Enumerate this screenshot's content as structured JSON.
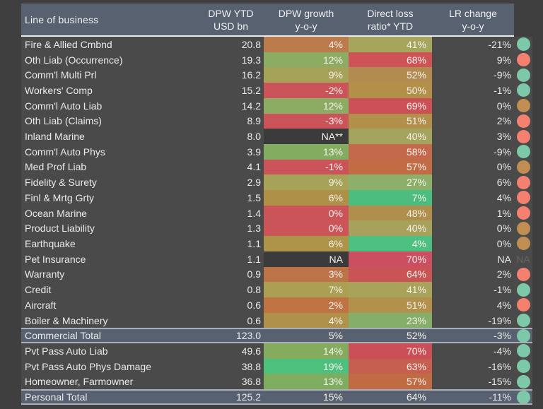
{
  "header": {
    "line_of_business": "Line of business",
    "col_dpw": {
      "line1": "DPW YTD",
      "line2": "USD bn"
    },
    "col_growth": {
      "line1": "DPW growth",
      "line2": "y-o-y"
    },
    "col_loss": {
      "line1": "Direct loss",
      "line2": "ratio* YTD"
    },
    "col_lr": {
      "line1": "LR change",
      "line2": "y-o-y"
    }
  },
  "colors": {
    "page_bg": "#3f3f3f",
    "row_bg": "#4a4a4a",
    "header_bg": "#57616f",
    "total_row_bg": "#57616f",
    "header_divider": "#e9ebed",
    "total_border": "#a9b0ba",
    "text": "#e9eaeb",
    "na_cell_bg": "#3b3b3b",
    "na_faded_text": "#656565",
    "indicator_teal": "#7dc8a9",
    "indicator_salmon": "#f4806f",
    "indicator_tan": "#c08d52"
  },
  "chart_data": {
    "type": "table",
    "subtype": "heatmap-table",
    "columns": [
      "Line of business",
      "DPW YTD USD bn",
      "DPW growth y-o-y",
      "Direct loss ratio* YTD",
      "LR change y-o-y"
    ],
    "na_indicator_text": "NA",
    "rows": [
      {
        "label": "Fire & Allied Cmbnd",
        "dpw_ytd": "20.8",
        "dpw_growth": "4%",
        "growth_bg": "#bb7b4a",
        "loss_ratio": "41%",
        "loss_bg": "#a6a55e",
        "lr_change": "-21%",
        "indicator": "teal",
        "is_total": false
      },
      {
        "label": "Oth Liab (Occurrence)",
        "dpw_ytd": "19.3",
        "dpw_growth": "12%",
        "growth_bg": "#8dac63",
        "loss_ratio": "68%",
        "loss_bg": "#cd5356",
        "lr_change": "9%",
        "indicator": "salmon",
        "is_total": false
      },
      {
        "label": "Comm'l Multi Prl",
        "dpw_ytd": "16.2",
        "dpw_growth": "9%",
        "growth_bg": "#a6a257",
        "loss_ratio": "52%",
        "loss_bg": "#b28b50",
        "lr_change": "-9%",
        "indicator": "teal",
        "is_total": false
      },
      {
        "label": "Workers' Comp",
        "dpw_ytd": "15.2",
        "dpw_growth": "-2%",
        "growth_bg": "#cb535a",
        "loss_ratio": "50%",
        "loss_bg": "#b2904a",
        "lr_change": "-1%",
        "indicator": "teal",
        "is_total": false
      },
      {
        "label": "Comm'l Auto Liab",
        "dpw_ytd": "14.2",
        "dpw_growth": "12%",
        "growth_bg": "#8dac63",
        "loss_ratio": "69%",
        "loss_bg": "#cc5156",
        "lr_change": "0%",
        "indicator": "tan",
        "is_total": false
      },
      {
        "label": "Oth Liab (Claims)",
        "dpw_ytd": "8.9",
        "dpw_growth": "-3%",
        "growth_bg": "#cb535a",
        "loss_ratio": "51%",
        "loss_bg": "#b28f4b",
        "lr_change": "2%",
        "indicator": "salmon",
        "is_total": false
      },
      {
        "label": "Inland Marine",
        "dpw_ytd": "8.0",
        "dpw_growth": "NA**",
        "growth_bg": "#3b3b3b",
        "loss_ratio": "40%",
        "loss_bg": "#a5a45e",
        "lr_change": "3%",
        "indicator": "salmon",
        "is_total": false
      },
      {
        "label": "Comm'l Auto Phys",
        "dpw_ytd": "3.9",
        "dpw_growth": "13%",
        "growth_bg": "#84ac60",
        "loss_ratio": "58%",
        "loss_bg": "#c4694b",
        "lr_change": "-9%",
        "indicator": "teal",
        "is_total": false
      },
      {
        "label": "Med Prof Liab",
        "dpw_ytd": "4.1",
        "dpw_growth": "-1%",
        "growth_bg": "#cb535a",
        "loss_ratio": "57%",
        "loss_bg": "#c16c45",
        "lr_change": "0%",
        "indicator": "tan",
        "is_total": false
      },
      {
        "label": "Fidelity & Surety",
        "dpw_ytd": "2.9",
        "dpw_growth": "9%",
        "growth_bg": "#a6a257",
        "loss_ratio": "27%",
        "loss_bg": "#8daf69",
        "lr_change": "6%",
        "indicator": "salmon",
        "is_total": false
      },
      {
        "label": "Finl & Mrtg Grty",
        "dpw_ytd": "1.5",
        "dpw_growth": "6%",
        "growth_bg": "#ae9049",
        "loss_ratio": "7%",
        "loss_bg": "#4cbd7e",
        "lr_change": "4%",
        "indicator": "salmon",
        "is_total": false
      },
      {
        "label": "Ocean Marine",
        "dpw_ytd": "1.4",
        "dpw_growth": "0%",
        "growth_bg": "#ca5457",
        "loss_ratio": "48%",
        "loss_bg": "#b08e4c",
        "lr_change": "1%",
        "indicator": "salmon",
        "is_total": false
      },
      {
        "label": "Product Liability",
        "dpw_ytd": "1.3",
        "dpw_growth": "0%",
        "growth_bg": "#ca5457",
        "loss_ratio": "40%",
        "loss_bg": "#a7a15c",
        "lr_change": "0%",
        "indicator": "tan",
        "is_total": false
      },
      {
        "label": "Earthquake",
        "dpw_ytd": "1.1",
        "dpw_growth": "6%",
        "growth_bg": "#ad9449",
        "loss_ratio": "4%",
        "loss_bg": "#4dbf80",
        "lr_change": "0%",
        "indicator": "tan",
        "is_total": false
      },
      {
        "label": "Pet Insurance",
        "dpw_ytd": "1.1",
        "dpw_growth": "NA",
        "growth_bg": "#3b3b3b",
        "loss_ratio": "70%",
        "loss_bg": "#cb4f60",
        "lr_change": "NA",
        "indicator": "na",
        "is_total": false
      },
      {
        "label": "Warranty",
        "dpw_ytd": "0.9",
        "dpw_growth": "3%",
        "growth_bg": "#bd7348",
        "loss_ratio": "64%",
        "loss_bg": "#ca5356",
        "lr_change": "2%",
        "indicator": "salmon",
        "is_total": false
      },
      {
        "label": "Credit",
        "dpw_ytd": "0.8",
        "dpw_growth": "7%",
        "growth_bg": "#aa9f53",
        "loss_ratio": "41%",
        "loss_bg": "#a8a25b",
        "lr_change": "-1%",
        "indicator": "teal",
        "is_total": false
      },
      {
        "label": "Aircraft",
        "dpw_ytd": "0.6",
        "dpw_growth": "2%",
        "growth_bg": "#c07446",
        "loss_ratio": "51%",
        "loss_bg": "#b2914c",
        "lr_change": "4%",
        "indicator": "salmon",
        "is_total": false
      },
      {
        "label": "Boiler & Machinery",
        "dpw_ytd": "0.6",
        "dpw_growth": "4%",
        "growth_bg": "#b0914b",
        "loss_ratio": "23%",
        "loss_bg": "#85ae68",
        "lr_change": "-19%",
        "indicator": "teal",
        "is_total": false
      },
      {
        "label": "Commercial Total",
        "dpw_ytd": "123.0",
        "dpw_growth": "5%",
        "growth_bg": null,
        "loss_ratio": "52%",
        "loss_bg": null,
        "lr_change": "-3%",
        "indicator": "teal",
        "is_total": true
      },
      {
        "label": "Pvt Pass Auto Liab",
        "dpw_ytd": "49.6",
        "dpw_growth": "14%",
        "growth_bg": "#84ab5e",
        "loss_ratio": "70%",
        "loss_bg": "#ca4f59",
        "lr_change": "-4%",
        "indicator": "teal",
        "is_total": false
      },
      {
        "label": "Pvt Pass Auto Phys Damage",
        "dpw_ytd": "38.8",
        "dpw_growth": "19%",
        "growth_bg": "#4ec07d",
        "loss_ratio": "63%",
        "loss_bg": "#c75f50",
        "lr_change": "-16%",
        "indicator": "teal",
        "is_total": false
      },
      {
        "label": "Homeowner, Farmowner",
        "dpw_ytd": "36.8",
        "dpw_growth": "13%",
        "growth_bg": "#7ead60",
        "loss_ratio": "57%",
        "loss_bg": "#c06b44",
        "lr_change": "-15%",
        "indicator": "teal",
        "is_total": false
      },
      {
        "label": "Personal Total",
        "dpw_ytd": "125.2",
        "dpw_growth": "15%",
        "growth_bg": null,
        "loss_ratio": "64%",
        "loss_bg": null,
        "lr_change": "-11%",
        "indicator": "teal",
        "is_total": true
      }
    ]
  }
}
